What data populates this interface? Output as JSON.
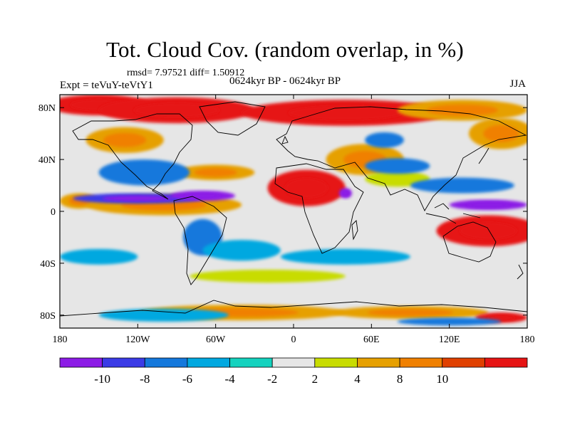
{
  "header": {
    "title": "Tot. Cloud Cov. (random overlap, in %)",
    "stats": "rmsd= 7.97521 diff= 1.50912",
    "left_label": "Expt = teVuY-teVtY1",
    "center_label": "0624kyr BP - 0624kyr BP",
    "right_label": "JJA"
  },
  "map": {
    "projection": "cylindrical equidistant",
    "lon_range": [
      -180,
      180
    ],
    "lat_range": [
      -90,
      90
    ],
    "x_ticks": [
      {
        "value": -180,
        "label": "180"
      },
      {
        "value": -120,
        "label": "120W"
      },
      {
        "value": -60,
        "label": "60W"
      },
      {
        "value": 0,
        "label": "0"
      },
      {
        "value": 60,
        "label": "60E"
      },
      {
        "value": 120,
        "label": "120E"
      },
      {
        "value": 180,
        "label": "180"
      }
    ],
    "y_ticks": [
      {
        "value": 80,
        "label": "80N"
      },
      {
        "value": 40,
        "label": "40N"
      },
      {
        "value": 0,
        "label": "0"
      },
      {
        "value": -40,
        "label": "40S"
      },
      {
        "value": -80,
        "label": "80S"
      }
    ],
    "anomaly_blobs": [
      {
        "lon": -150,
        "lat": 82,
        "rlon": 40,
        "rlat": 8,
        "level": 10
      },
      {
        "lon": -90,
        "lat": 78,
        "rlon": 60,
        "rlat": 10,
        "level": 10
      },
      {
        "lon": 40,
        "lat": 76,
        "rlon": 80,
        "rlat": 10,
        "level": 10
      },
      {
        "lon": 130,
        "lat": 78,
        "rlon": 50,
        "rlat": 8,
        "level": 8
      },
      {
        "lon": 160,
        "lat": 60,
        "rlon": 25,
        "rlat": 12,
        "level": 8
      },
      {
        "lon": -130,
        "lat": 55,
        "rlon": 30,
        "rlat": 10,
        "level": 8
      },
      {
        "lon": 10,
        "lat": 18,
        "rlon": 30,
        "rlat": 14,
        "level": 10
      },
      {
        "lon": 55,
        "lat": 40,
        "rlon": 30,
        "rlat": 12,
        "level": 8
      },
      {
        "lon": 150,
        "lat": -15,
        "rlon": 40,
        "rlat": 12,
        "level": 10
      },
      {
        "lon": -100,
        "lat": 5,
        "rlon": 60,
        "rlat": 8,
        "level": 8
      },
      {
        "lon": -60,
        "lat": 30,
        "rlon": 30,
        "rlat": 6,
        "level": 8
      },
      {
        "lon": -20,
        "lat": -50,
        "rlon": 60,
        "rlat": 5,
        "level": 4
      },
      {
        "lon": -40,
        "lat": -78,
        "rlon": 80,
        "rlat": 6,
        "level": 8
      },
      {
        "lon": 90,
        "lat": -78,
        "rlon": 60,
        "rlat": 5,
        "level": 8
      },
      {
        "lon": 160,
        "lat": -82,
        "rlon": 20,
        "rlat": 4,
        "level": 10
      },
      {
        "lon": 80,
        "lat": 25,
        "rlon": 25,
        "rlat": 6,
        "level": 4
      },
      {
        "lon": -165,
        "lat": 8,
        "rlon": 15,
        "rlat": 6,
        "level": 8
      },
      {
        "lon": -115,
        "lat": 30,
        "rlon": 35,
        "rlat": 10,
        "level": -6
      },
      {
        "lon": -120,
        "lat": 10,
        "rlon": 50,
        "rlat": 4,
        "level": -8
      },
      {
        "lon": -70,
        "lat": 12,
        "rlon": 25,
        "rlat": 4,
        "level": -10
      },
      {
        "lon": 150,
        "lat": 5,
        "rlon": 30,
        "rlat": 4,
        "level": -10
      },
      {
        "lon": 130,
        "lat": 20,
        "rlon": 40,
        "rlat": 6,
        "level": -6
      },
      {
        "lon": 80,
        "lat": 35,
        "rlon": 25,
        "rlat": 6,
        "level": -6
      },
      {
        "lon": -70,
        "lat": -20,
        "rlon": 15,
        "rlat": 14,
        "level": -6
      },
      {
        "lon": 40,
        "lat": -35,
        "rlon": 50,
        "rlat": 6,
        "level": -4
      },
      {
        "lon": -150,
        "lat": -35,
        "rlon": 30,
        "rlat": 6,
        "level": -4
      },
      {
        "lon": 70,
        "lat": 55,
        "rlon": 15,
        "rlat": 6,
        "level": -6
      },
      {
        "lon": -40,
        "lat": -30,
        "rlon": 30,
        "rlat": 8,
        "level": -4
      },
      {
        "lon": -100,
        "lat": -80,
        "rlon": 50,
        "rlat": 5,
        "level": -4
      },
      {
        "lon": 120,
        "lat": -85,
        "rlon": 40,
        "rlat": 3,
        "level": -6
      },
      {
        "lon": 40,
        "lat": 14,
        "rlon": 5,
        "rlat": 4,
        "level": -10
      }
    ]
  },
  "colorbar": {
    "colors": [
      "#8c1ce6",
      "#3b3be6",
      "#1478dc",
      "#00a8e0",
      "#14d2be",
      "#e6e6e6",
      "#c8dc00",
      "#e6a000",
      "#f08000",
      "#e04000",
      "#e61414"
    ],
    "labels": [
      "-10",
      "-8",
      "-6",
      "-4",
      "-2",
      "2",
      "4",
      "8",
      "10"
    ]
  }
}
